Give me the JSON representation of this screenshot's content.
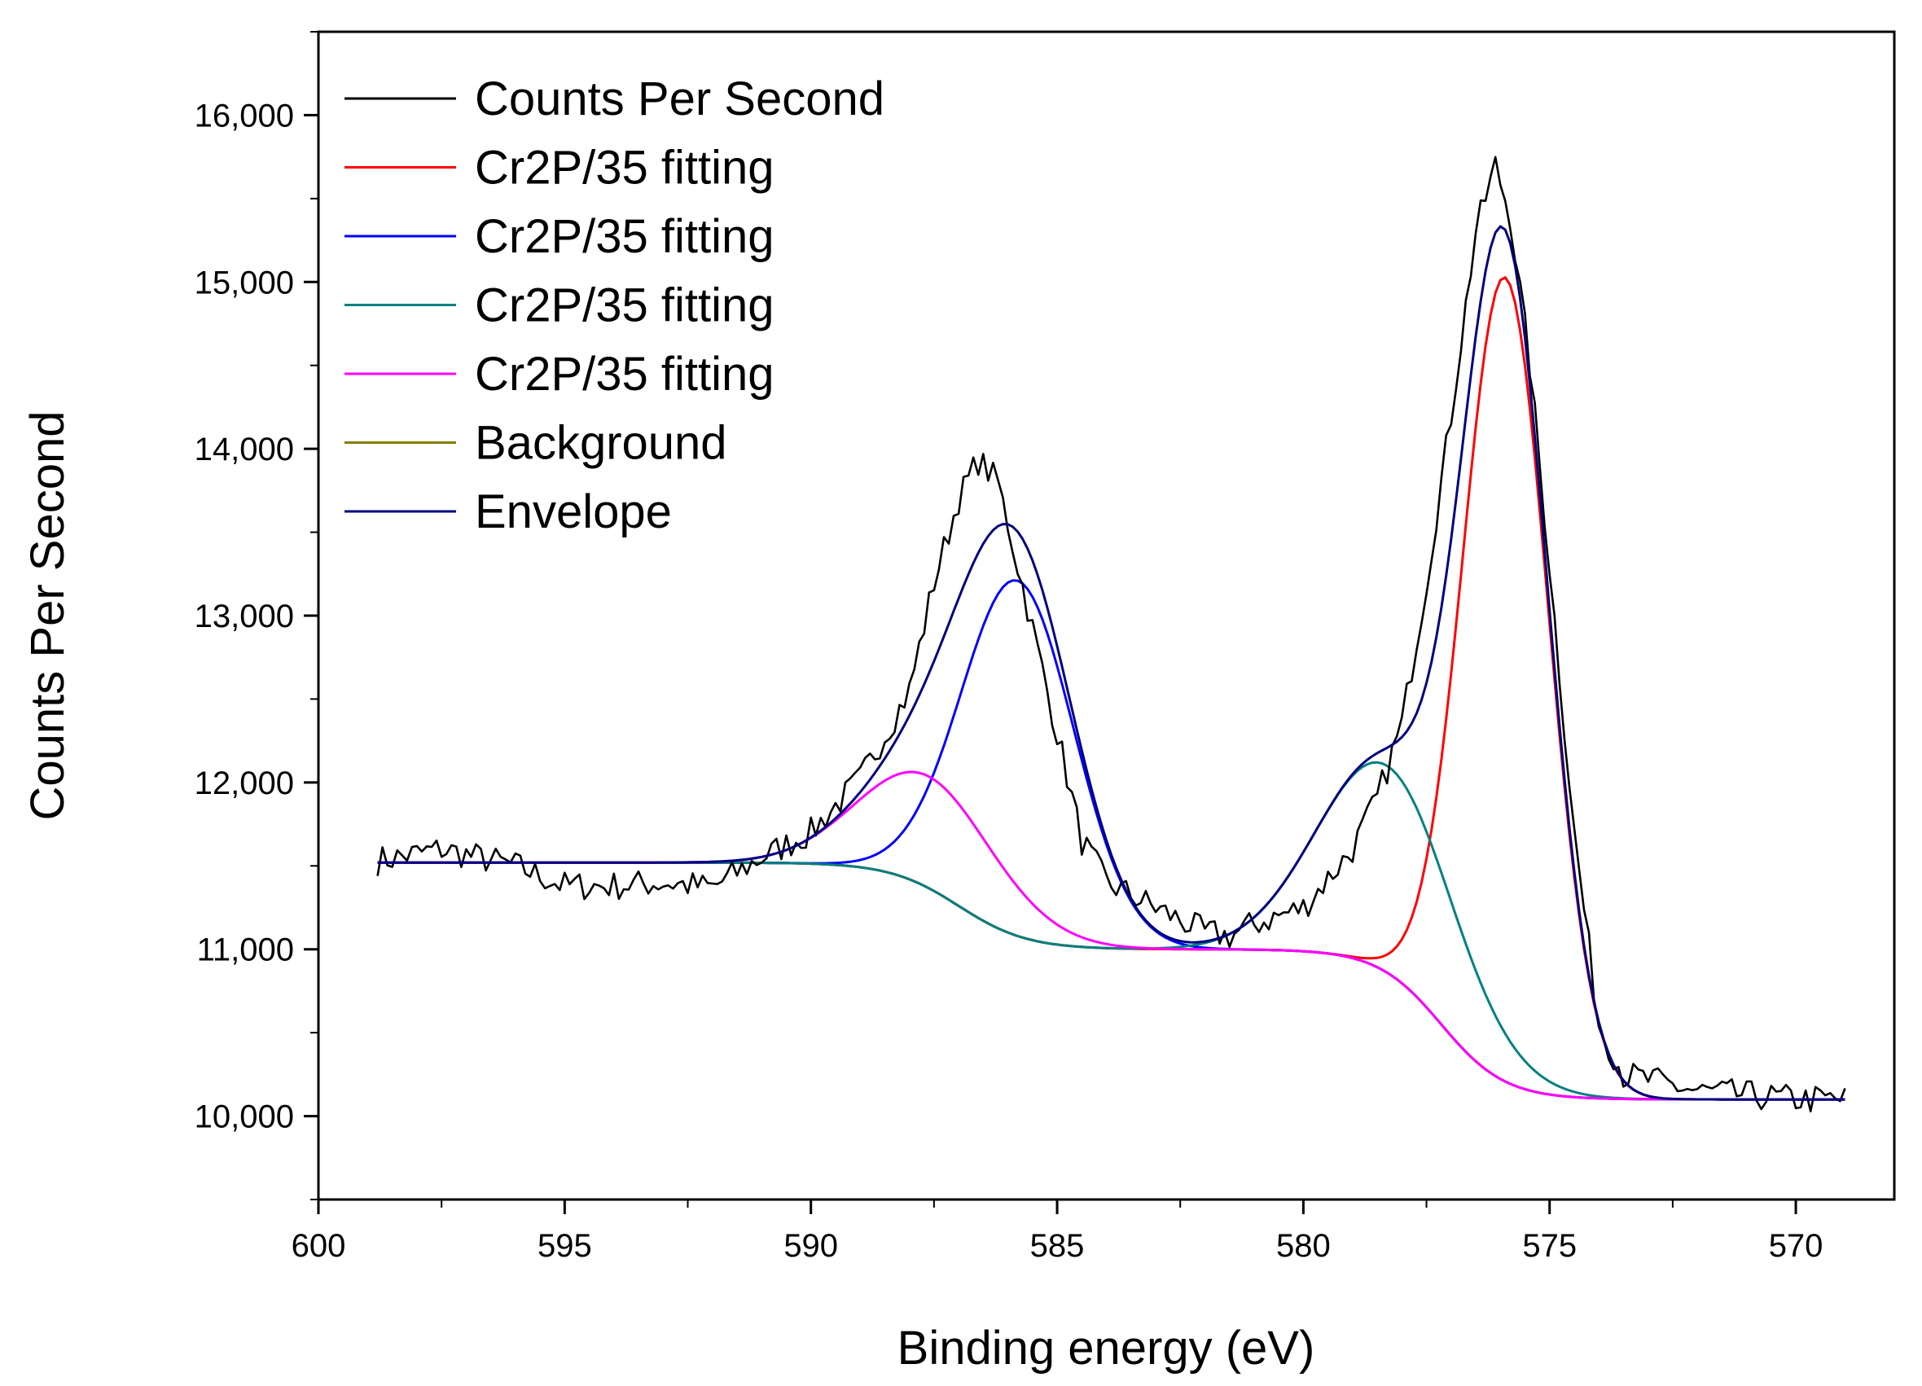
{
  "chart_data": {
    "type": "line",
    "title": "",
    "xlabel": "Binding energy (eV)",
    "ylabel": "Counts Per Second",
    "xlim": [
      600,
      568
    ],
    "ylim": [
      9500,
      16500
    ],
    "x_reversed": true,
    "x_ticks": [
      600,
      595,
      590,
      585,
      580,
      575,
      570
    ],
    "x_tick_labels": [
      "600",
      "595",
      "590",
      "585",
      "580",
      "575",
      "570"
    ],
    "y_ticks": [
      10000,
      11000,
      12000,
      13000,
      14000,
      15000,
      16000
    ],
    "y_tick_labels": [
      "10,000",
      "11,000",
      "12,000",
      "13,000",
      "14,000",
      "15,000",
      "16,000"
    ],
    "grid": false,
    "legend_position": "top-left",
    "x_range": [
      598.8,
      569.0
    ],
    "x_step": 0.1,
    "series": [
      {
        "name": "Counts Per Second",
        "color": "#000000",
        "kind": "measured",
        "noise_amplitude": 90,
        "noise_seed": 7,
        "anchors": [
          [
            598.8,
            11530
          ],
          [
            597.5,
            11600
          ],
          [
            596.0,
            11500
          ],
          [
            595.0,
            11380
          ],
          [
            594.0,
            11380
          ],
          [
            593.0,
            11400
          ],
          [
            592.0,
            11370
          ],
          [
            591.0,
            11550
          ],
          [
            590.0,
            11700
          ],
          [
            589.0,
            12020
          ],
          [
            588.0,
            12550
          ],
          [
            587.5,
            13200
          ],
          [
            587.0,
            13700
          ],
          [
            586.6,
            13930
          ],
          [
            586.2,
            13800
          ],
          [
            585.8,
            13300
          ],
          [
            585.0,
            12300
          ],
          [
            584.5,
            11650
          ],
          [
            584.0,
            11400
          ],
          [
            583.0,
            11250
          ],
          [
            582.0,
            11100
          ],
          [
            581.5,
            11080
          ],
          [
            581.0,
            11150
          ],
          [
            580.0,
            11250
          ],
          [
            579.0,
            11600
          ],
          [
            578.5,
            11900
          ],
          [
            578.0,
            12350
          ],
          [
            577.5,
            13200
          ],
          [
            577.0,
            14200
          ],
          [
            576.5,
            15300
          ],
          [
            576.1,
            15700
          ],
          [
            575.8,
            15400
          ],
          [
            575.4,
            14500
          ],
          [
            575.0,
            13300
          ],
          [
            574.5,
            11700
          ],
          [
            574.0,
            10550
          ],
          [
            573.5,
            10250
          ],
          [
            572.0,
            10150
          ],
          [
            570.0,
            10100
          ],
          [
            569.0,
            10100
          ]
        ]
      },
      {
        "name": "Cr2P/35 fitting",
        "color": "#ff0000",
        "kind": "peak",
        "peak_center": 575.9,
        "peak_height": 4820,
        "peak_fwhm": 2.05
      },
      {
        "name": "Cr2P/35 fitting",
        "color": "#0000ff",
        "kind": "peak",
        "peak_center": 585.8,
        "peak_height": 2130,
        "peak_fwhm": 2.7
      },
      {
        "name": "Cr2P/35 fitting",
        "color": "#008080",
        "kind": "peak",
        "peak_center": 578.3,
        "peak_height": 1240,
        "peak_fwhm": 3.3
      },
      {
        "name": "Cr2P/35 fitting",
        "color": "#ff00ff",
        "kind": "peak",
        "peak_center": 587.6,
        "peak_height": 670,
        "peak_fwhm": 3.3
      },
      {
        "name": "Background",
        "color": "#808000",
        "kind": "background",
        "baseline_start": 11520,
        "step1_center": 587.0,
        "step1_height": 520,
        "step1_width": 0.7,
        "step2_center": 577.2,
        "step2_height": 900,
        "step2_width": 0.65,
        "baseline_end": 10060
      },
      {
        "name": "Envelope",
        "color": "#000080",
        "kind": "envelope"
      }
    ]
  }
}
